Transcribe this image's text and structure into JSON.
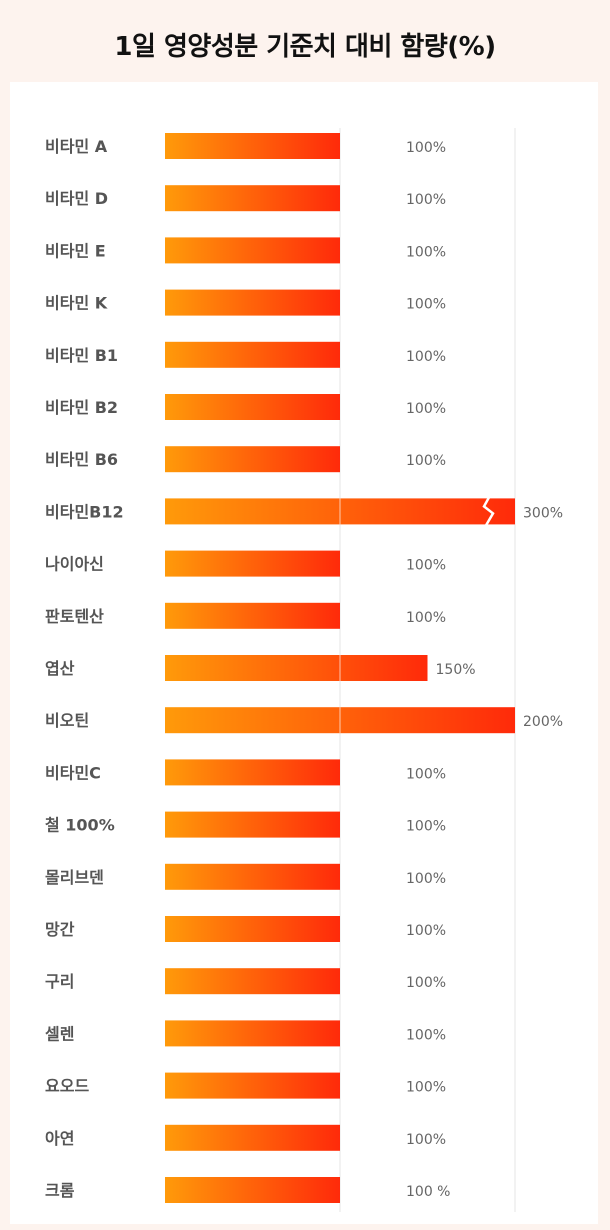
{
  "page_title": "1일 영양성분 기준치 대비 함량(%)",
  "colors": {
    "bar_start": "#ff9a0a",
    "bar_end": "#ff2a0a",
    "label_text": "#555555",
    "value_text": "#666666",
    "gridline": "#e6e6e6",
    "background": "#fdf3ee"
  },
  "chart_data": {
    "type": "bar",
    "orientation": "horizontal",
    "title": "1일 영양성분 기준치 대비 함량(%)",
    "xlabel": "",
    "ylabel": "",
    "xlim": [
      0,
      200
    ],
    "grid": true,
    "categories": [
      "비타민 A",
      "비타민 D",
      "비타민 E",
      "비타민 K",
      "비타민 B1",
      "비타민 B2",
      "비타민 B6",
      "비타민B12",
      "나이아신",
      "판토텐산",
      "엽산",
      "비오틴",
      "비타민C",
      "철 100%",
      "몰리브덴",
      "망간",
      "구리",
      "셀렌",
      "요오드",
      "아연",
      "크롬"
    ],
    "values": [
      100,
      100,
      100,
      100,
      100,
      100,
      100,
      300,
      100,
      100,
      150,
      200,
      100,
      100,
      100,
      100,
      100,
      100,
      100,
      100,
      100
    ],
    "value_labels": [
      "100%",
      "100%",
      "100%",
      "100%",
      "100%",
      "100%",
      "100%",
      "300%",
      "100%",
      "100%",
      "150%",
      "200%",
      "100%",
      "100%",
      "100%",
      "100%",
      "100%",
      "100%",
      "100%",
      "100%",
      "100 %"
    ],
    "axis_break_categories": [
      "비타민B12"
    ]
  }
}
